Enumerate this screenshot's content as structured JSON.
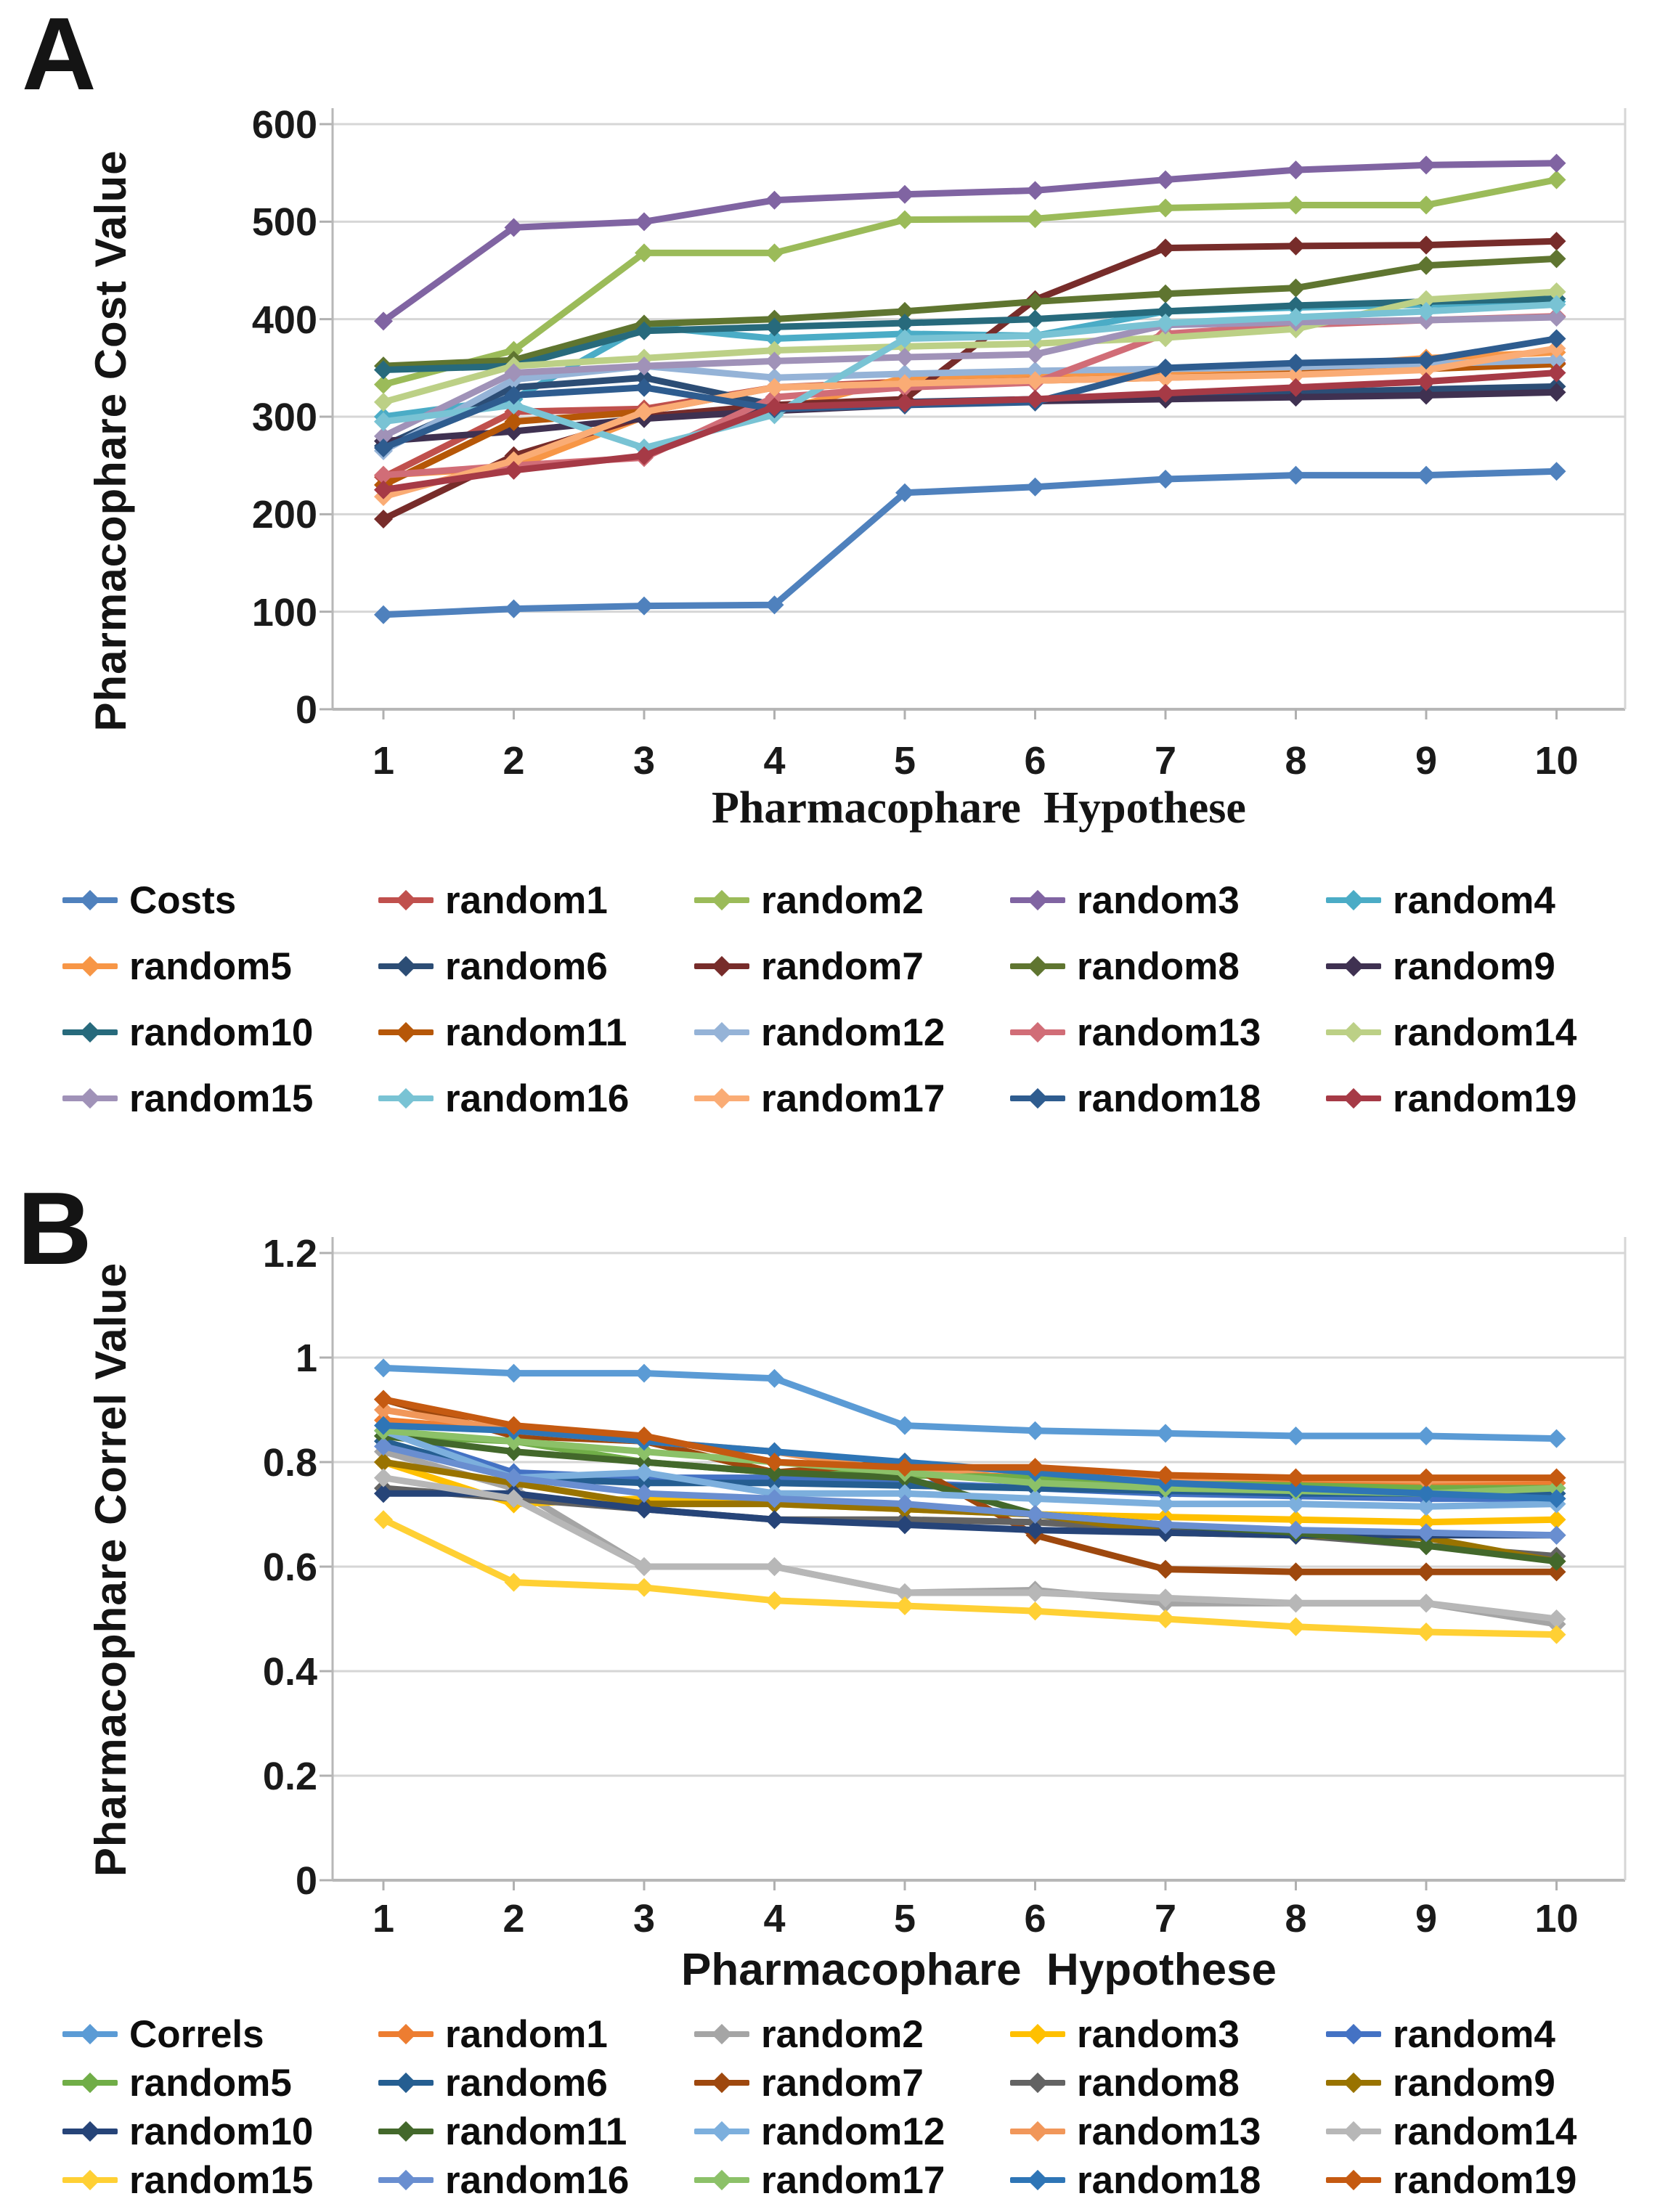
{
  "panels": {
    "a": "A",
    "b": "B"
  },
  "chart_data": [
    {
      "id": "cost-chart",
      "type": "line",
      "title": "",
      "xlabel": "Pharmacophare  Hypothese",
      "ylabel": "Pharmacophare Cost Value",
      "categories": [
        1,
        2,
        3,
        4,
        5,
        6,
        7,
        8,
        9,
        10
      ],
      "ylim": [
        0,
        600
      ],
      "ytick_labels": [
        "0",
        "100",
        "200",
        "300",
        "400",
        "500",
        "600"
      ],
      "grid": true,
      "legend_position": "bottom",
      "marker": "diamond",
      "series": [
        {
          "name": "Costs",
          "color": "#4F81BD",
          "values": [
            97,
            103,
            106,
            107,
            222,
            228,
            236,
            240,
            240,
            244
          ]
        },
        {
          "name": "random1",
          "color": "#C0504D",
          "values": [
            238,
            305,
            308,
            330,
            336,
            340,
            345,
            348,
            352,
            355
          ]
        },
        {
          "name": "random2",
          "color": "#9BBB59",
          "values": [
            333,
            368,
            468,
            468,
            502,
            503,
            514,
            517,
            517,
            543
          ]
        },
        {
          "name": "random3",
          "color": "#8064A2",
          "values": [
            398,
            494,
            500,
            522,
            528,
            532,
            543,
            553,
            558,
            560
          ]
        },
        {
          "name": "random4",
          "color": "#4BACC6",
          "values": [
            300,
            318,
            393,
            380,
            385,
            383,
            408,
            412,
            415,
            418
          ]
        },
        {
          "name": "random5",
          "color": "#F79646",
          "values": [
            240,
            248,
            300,
            305,
            340,
            344,
            346,
            350,
            360,
            366
          ]
        },
        {
          "name": "random6",
          "color": "#2C4D75",
          "values": [
            270,
            330,
            340,
            312,
            315,
            318,
            322,
            325,
            328,
            331
          ]
        },
        {
          "name": "random7",
          "color": "#772C2A",
          "values": [
            195,
            260,
            300,
            312,
            318,
            420,
            473,
            475,
            476,
            480
          ]
        },
        {
          "name": "random8",
          "color": "#5F7530",
          "values": [
            352,
            358,
            395,
            400,
            408,
            418,
            426,
            432,
            455,
            462
          ]
        },
        {
          "name": "random9",
          "color": "#3F3151",
          "values": [
            275,
            285,
            298,
            306,
            312,
            316,
            318,
            320,
            322,
            325
          ]
        },
        {
          "name": "random10",
          "color": "#276A7C",
          "values": [
            348,
            352,
            388,
            392,
            396,
            400,
            408,
            414,
            418,
            421
          ]
        },
        {
          "name": "random11",
          "color": "#B65708",
          "values": [
            230,
            295,
            305,
            330,
            334,
            337,
            340,
            344,
            349,
            354
          ]
        },
        {
          "name": "random12",
          "color": "#95B3D7",
          "values": [
            265,
            338,
            352,
            340,
            344,
            347,
            349,
            351,
            354,
            358
          ]
        },
        {
          "name": "random13",
          "color": "#D16D77",
          "values": [
            240,
            250,
            258,
            320,
            330,
            335,
            385,
            394,
            399,
            403
          ]
        },
        {
          "name": "random14",
          "color": "#BCD086",
          "values": [
            315,
            352,
            360,
            368,
            372,
            375,
            381,
            390,
            420,
            428
          ]
        },
        {
          "name": "random15",
          "color": "#A092B8",
          "values": [
            280,
            345,
            352,
            357,
            361,
            364,
            394,
            397,
            399,
            402
          ]
        },
        {
          "name": "random16",
          "color": "#79C3D4",
          "values": [
            295,
            312,
            268,
            302,
            380,
            383,
            396,
            402,
            408,
            415
          ]
        },
        {
          "name": "random17",
          "color": "#FAAC75",
          "values": [
            218,
            255,
            305,
            330,
            334,
            337,
            340,
            343,
            348,
            370
          ]
        },
        {
          "name": "random18",
          "color": "#2E5C8F",
          "values": [
            268,
            322,
            330,
            308,
            312,
            315,
            350,
            355,
            358,
            380
          ]
        },
        {
          "name": "random19",
          "color": "#A63A46",
          "values": [
            225,
            245,
            260,
            310,
            314,
            318,
            324,
            330,
            336,
            345
          ]
        }
      ]
    },
    {
      "id": "correl-chart",
      "type": "line",
      "title": "",
      "xlabel": "Pharmacophare  Hypothese",
      "ylabel": "Pharmacophare Correl Value",
      "categories": [
        1,
        2,
        3,
        4,
        5,
        6,
        7,
        8,
        9,
        10
      ],
      "ylim": [
        0,
        1.2
      ],
      "ytick_labels": [
        "0",
        "0.2",
        "0.4",
        "0.6",
        "0.8",
        "1",
        "1.2"
      ],
      "grid": true,
      "legend_position": "bottom",
      "marker": "diamond",
      "series": [
        {
          "name": "Correls",
          "color": "#5B9BD5",
          "values": [
            0.98,
            0.97,
            0.97,
            0.96,
            0.87,
            0.86,
            0.855,
            0.85,
            0.85,
            0.845
          ]
        },
        {
          "name": "random1",
          "color": "#ED7D31",
          "values": [
            0.88,
            0.86,
            0.84,
            0.78,
            0.78,
            0.77,
            0.765,
            0.76,
            0.76,
            0.76
          ]
        },
        {
          "name": "random2",
          "color": "#A5A5A5",
          "values": [
            0.82,
            0.75,
            0.6,
            0.6,
            0.55,
            0.555,
            0.53,
            0.53,
            0.53,
            0.49
          ]
        },
        {
          "name": "random3",
          "color": "#FFC000",
          "values": [
            0.8,
            0.72,
            0.73,
            0.72,
            0.71,
            0.7,
            0.695,
            0.69,
            0.685,
            0.69
          ]
        },
        {
          "name": "random4",
          "color": "#4472C4",
          "values": [
            0.86,
            0.78,
            0.77,
            0.77,
            0.76,
            0.75,
            0.74,
            0.735,
            0.73,
            0.73
          ]
        },
        {
          "name": "random5",
          "color": "#70AD47",
          "values": [
            0.85,
            0.84,
            0.8,
            0.78,
            0.775,
            0.77,
            0.76,
            0.755,
            0.75,
            0.75
          ]
        },
        {
          "name": "random6",
          "color": "#255E91",
          "values": [
            0.84,
            0.77,
            0.76,
            0.76,
            0.755,
            0.75,
            0.745,
            0.74,
            0.74,
            0.74
          ]
        },
        {
          "name": "random7",
          "color": "#9E480E",
          "values": [
            0.92,
            0.85,
            0.84,
            0.78,
            0.8,
            0.66,
            0.595,
            0.59,
            0.59,
            0.59
          ]
        },
        {
          "name": "random8",
          "color": "#636363",
          "values": [
            0.75,
            0.73,
            0.71,
            0.69,
            0.69,
            0.685,
            0.67,
            0.66,
            0.64,
            0.62
          ]
        },
        {
          "name": "random9",
          "color": "#997300",
          "values": [
            0.8,
            0.76,
            0.72,
            0.72,
            0.71,
            0.7,
            0.665,
            0.66,
            0.655,
            0.61
          ]
        },
        {
          "name": "random10",
          "color": "#264478",
          "values": [
            0.74,
            0.74,
            0.71,
            0.69,
            0.68,
            0.67,
            0.665,
            0.66,
            0.66,
            0.66
          ]
        },
        {
          "name": "random11",
          "color": "#43682B",
          "values": [
            0.85,
            0.82,
            0.8,
            0.78,
            0.77,
            0.7,
            0.68,
            0.665,
            0.64,
            0.61
          ]
        },
        {
          "name": "random12",
          "color": "#7CAFDD",
          "values": [
            0.86,
            0.77,
            0.78,
            0.74,
            0.74,
            0.73,
            0.72,
            0.72,
            0.715,
            0.72
          ]
        },
        {
          "name": "random13",
          "color": "#F1975A",
          "values": [
            0.9,
            0.86,
            0.84,
            0.82,
            0.78,
            0.79,
            0.77,
            0.77,
            0.765,
            0.77
          ]
        },
        {
          "name": "random14",
          "color": "#B7B7B7",
          "values": [
            0.77,
            0.73,
            0.6,
            0.6,
            0.55,
            0.55,
            0.54,
            0.53,
            0.53,
            0.5
          ]
        },
        {
          "name": "random15",
          "color": "#FFD034",
          "values": [
            0.69,
            0.57,
            0.56,
            0.535,
            0.525,
            0.515,
            0.5,
            0.485,
            0.475,
            0.47
          ]
        },
        {
          "name": "random16",
          "color": "#698ED0",
          "values": [
            0.83,
            0.77,
            0.74,
            0.73,
            0.72,
            0.7,
            0.68,
            0.67,
            0.665,
            0.66
          ]
        },
        {
          "name": "random17",
          "color": "#8CC168",
          "values": [
            0.86,
            0.84,
            0.82,
            0.8,
            0.78,
            0.76,
            0.75,
            0.745,
            0.74,
            0.75
          ]
        },
        {
          "name": "random18",
          "color": "#2E75B6",
          "values": [
            0.87,
            0.86,
            0.84,
            0.82,
            0.8,
            0.78,
            0.76,
            0.75,
            0.74,
            0.73
          ]
        },
        {
          "name": "random19",
          "color": "#C55A11",
          "values": [
            0.92,
            0.87,
            0.85,
            0.8,
            0.79,
            0.79,
            0.775,
            0.77,
            0.77,
            0.77
          ]
        }
      ]
    }
  ]
}
